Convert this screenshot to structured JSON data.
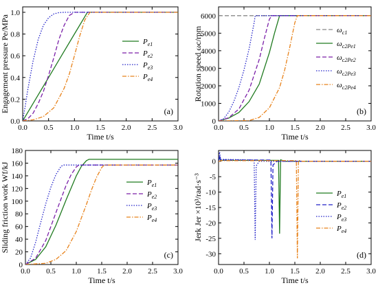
{
  "chart_data": [
    {
      "type": "line",
      "panel_label": "(a)",
      "xlabel": "Time t/s",
      "ylabel": "Engagement pressure Pe/MPa",
      "xlim": [
        0,
        3.0
      ],
      "ylim": [
        0,
        1.05
      ],
      "xticks": [
        0,
        0.5,
        1.0,
        1.5,
        2.0,
        2.5,
        3.0
      ],
      "xtick_labels": [
        "0.0",
        "0.5",
        "1.0",
        "1.5",
        "2.0",
        "2.5",
        "3.0"
      ],
      "yticks": [
        0,
        0.2,
        0.4,
        0.6,
        0.8,
        1.0
      ],
      "ytick_labels": [
        "0.0",
        "0.2",
        "0.4",
        "0.6",
        "0.8",
        "1.0"
      ],
      "legend_position": "center-right",
      "series": [
        {
          "name": "Pe1",
          "color": "#1f7a1f",
          "style": "solid",
          "x": [
            0,
            0.25,
            0.5,
            0.75,
            1.0,
            1.25,
            3.0
          ],
          "y": [
            0,
            0.2,
            0.4,
            0.6,
            0.8,
            1.0,
            1.0
          ]
        },
        {
          "name": "Pe2",
          "color": "#7a1fa8",
          "style": "dash",
          "x": [
            0,
            0.1,
            0.2,
            0.3,
            0.4,
            0.5,
            0.6,
            0.7,
            0.8,
            0.9,
            1.0,
            3.0
          ],
          "y": [
            0,
            0.02,
            0.07,
            0.16,
            0.27,
            0.42,
            0.58,
            0.75,
            0.88,
            0.97,
            1.0,
            1.0
          ]
        },
        {
          "name": "Pe3",
          "color": "#2020c8",
          "style": "dot",
          "x": [
            0,
            0.05,
            0.1,
            0.2,
            0.3,
            0.4,
            0.5,
            0.6,
            0.7,
            0.8,
            3.0
          ],
          "y": [
            0,
            0.14,
            0.29,
            0.55,
            0.75,
            0.88,
            0.95,
            0.985,
            0.997,
            1.0,
            1.0
          ]
        },
        {
          "name": "Pe4",
          "color": "#e8821a",
          "style": "dashdot",
          "x": [
            0,
            0.2,
            0.4,
            0.6,
            0.8,
            0.9,
            1.0,
            1.1,
            1.2,
            1.3,
            3.0
          ],
          "y": [
            0,
            0.01,
            0.04,
            0.12,
            0.3,
            0.43,
            0.6,
            0.78,
            0.93,
            1.0,
            1.0
          ]
        }
      ]
    },
    {
      "type": "line",
      "panel_label": "(b)",
      "xlabel": "Time t/s",
      "ylabel": "Rotation speed ωc/rpm",
      "xlim": [
        0,
        3.0
      ],
      "ylim": [
        0,
        6500
      ],
      "xticks": [
        0,
        0.5,
        1.0,
        1.5,
        2.0,
        2.5,
        3.0
      ],
      "xtick_labels": [
        "0.0",
        "0.5",
        "1.0",
        "1.5",
        "2.0",
        "2.5",
        "3.0"
      ],
      "yticks": [
        0,
        1000,
        2000,
        3000,
        4000,
        5000,
        6000
      ],
      "ytick_labels": [
        "0",
        "1000",
        "2000",
        "3000",
        "4000",
        "5000",
        "6000"
      ],
      "legend_position": "center-right",
      "series": [
        {
          "name": "ωc1",
          "color": "#888888",
          "style": "dash",
          "x": [
            0,
            3.0
          ],
          "y": [
            6000,
            6000
          ]
        },
        {
          "name": "ωc2Pe1",
          "color": "#1f7a1f",
          "style": "solid",
          "x": [
            0,
            0.2,
            0.4,
            0.6,
            0.8,
            1.0,
            1.1,
            1.2,
            3.0
          ],
          "y": [
            0,
            160,
            480,
            1100,
            2100,
            3900,
            5000,
            6000,
            6000
          ]
        },
        {
          "name": "ωc2Pe2",
          "color": "#7a1fa8",
          "style": "dash",
          "x": [
            0,
            0.2,
            0.4,
            0.6,
            0.8,
            0.9,
            1.0,
            1.05,
            3.0
          ],
          "y": [
            0,
            180,
            680,
            1750,
            3500,
            4700,
            5800,
            6000,
            6000
          ]
        },
        {
          "name": "ωc2Pe3",
          "color": "#2020c8",
          "style": "dot",
          "x": [
            0,
            0.1,
            0.2,
            0.3,
            0.4,
            0.5,
            0.6,
            0.7,
            0.72,
            3.0
          ],
          "y": [
            0,
            120,
            500,
            1100,
            1900,
            2900,
            4100,
            5600,
            6000,
            6000
          ]
        },
        {
          "name": "ωc2Pe4",
          "color": "#e8821a",
          "style": "dashdot",
          "x": [
            0,
            0.6,
            0.8,
            1.0,
            1.2,
            1.3,
            1.4,
            1.5,
            1.55,
            3.0
          ],
          "y": [
            0,
            20,
            200,
            750,
            1900,
            2900,
            4200,
            5600,
            6000,
            6000
          ]
        }
      ]
    },
    {
      "type": "line",
      "panel_label": "(c)",
      "xlabel": "Time t/s",
      "ylabel": "Sliding friction work Wf/kJ",
      "xlim": [
        0,
        3.0
      ],
      "ylim": [
        0,
        180
      ],
      "xticks": [
        0,
        0.5,
        1.0,
        1.5,
        2.0,
        2.5,
        3.0
      ],
      "xtick_labels": [
        "0.0",
        "0.5",
        "1.0",
        "1.5",
        "2.0",
        "2.5",
        "3.0"
      ],
      "yticks": [
        0,
        20,
        40,
        60,
        80,
        100,
        120,
        140,
        160,
        180
      ],
      "ytick_labels": [
        "0",
        "20",
        "40",
        "60",
        "80",
        "100",
        "120",
        "140",
        "160",
        "180"
      ],
      "legend_position": "center-right",
      "series": [
        {
          "name": "Pe1",
          "color": "#1f7a1f",
          "style": "solid",
          "x": [
            0,
            0.2,
            0.4,
            0.6,
            0.8,
            1.0,
            1.1,
            1.2,
            1.25,
            3.0
          ],
          "y": [
            0,
            8,
            28,
            62,
            102,
            140,
            155,
            164,
            166,
            166
          ]
        },
        {
          "name": "Pe2",
          "color": "#7a1fa8",
          "style": "dash",
          "x": [
            0,
            0.2,
            0.4,
            0.6,
            0.8,
            0.9,
            1.0,
            1.05,
            3.0
          ],
          "y": [
            0,
            10,
            38,
            82,
            125,
            142,
            154,
            157,
            157
          ]
        },
        {
          "name": "Pe3",
          "color": "#2020c8",
          "style": "dot",
          "x": [
            0,
            0.1,
            0.2,
            0.3,
            0.4,
            0.5,
            0.6,
            0.7,
            0.75,
            3.0
          ],
          "y": [
            0,
            10,
            35,
            66,
            96,
            122,
            142,
            155,
            157,
            157
          ]
        },
        {
          "name": "Pe4",
          "color": "#e8821a",
          "style": "dashdot",
          "x": [
            0,
            0.4,
            0.6,
            0.8,
            1.0,
            1.2,
            1.3,
            1.4,
            1.5,
            1.55,
            3.0
          ],
          "y": [
            0,
            2,
            8,
            22,
            52,
            95,
            118,
            138,
            153,
            157,
            157
          ]
        }
      ]
    },
    {
      "type": "line",
      "panel_label": "(d)",
      "xlabel": "Time t/s",
      "ylabel": "Jerk Jer ×10³/rad·s⁻³",
      "xlim": [
        0,
        3.0
      ],
      "ylim": [
        -33.5,
        3.5
      ],
      "xticks": [
        0,
        0.5,
        1.0,
        1.5,
        2.0,
        2.5,
        3.0
      ],
      "xtick_labels": [
        "0.0",
        "0.5",
        "1.0",
        "1.5",
        "2.0",
        "2.5",
        "3.0"
      ],
      "yticks": [
        0,
        -5,
        -10,
        -15,
        -20,
        -25,
        -30
      ],
      "ytick_labels": [
        "0",
        "-5",
        "-10",
        "-15",
        "-20",
        "-25",
        "-30"
      ],
      "legend_position": "center-right",
      "series": [
        {
          "name": "Pe1",
          "color": "#1f7a1f",
          "style": "solid",
          "x": [
            0,
            0.02,
            0.04,
            0.1,
            1.18,
            1.2,
            1.22,
            1.3,
            3.0
          ],
          "y": [
            0,
            1.2,
            0.3,
            0.3,
            0.3,
            -23.5,
            0.5,
            0,
            0
          ]
        },
        {
          "name": "Pe2",
          "color": "#2020c8",
          "style": "dash",
          "x": [
            0,
            0.02,
            0.04,
            0.1,
            1.03,
            1.05,
            1.07,
            1.15,
            3.0
          ],
          "y": [
            0,
            1.8,
            0.4,
            0.4,
            0.4,
            -25.0,
            -1.2,
            0,
            0
          ]
        },
        {
          "name": "Pe3",
          "color": "#2020c8",
          "style": "dot",
          "x": [
            0,
            0.02,
            0.04,
            0.1,
            0.7,
            0.72,
            0.74,
            0.8,
            3.0
          ],
          "y": [
            0,
            3.0,
            0.6,
            0.6,
            0.4,
            -25.5,
            -1.5,
            0,
            0
          ]
        },
        {
          "name": "Pe4",
          "color": "#e8821a",
          "style": "dashdot",
          "x": [
            0,
            0.05,
            1.53,
            1.55,
            1.57,
            1.65,
            3.0
          ],
          "y": [
            0,
            0.2,
            0.2,
            -31.5,
            0.3,
            0,
            0
          ]
        }
      ]
    }
  ]
}
